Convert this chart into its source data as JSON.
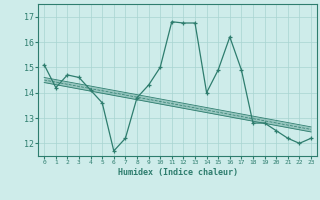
{
  "x": [
    0,
    1,
    2,
    3,
    4,
    5,
    6,
    7,
    8,
    9,
    10,
    11,
    12,
    13,
    14,
    15,
    16,
    17,
    18,
    19,
    20,
    21,
    22,
    23
  ],
  "y": [
    15.1,
    14.2,
    14.7,
    14.6,
    14.1,
    13.6,
    11.7,
    12.2,
    13.8,
    14.3,
    15.0,
    16.8,
    16.75,
    16.75,
    14.0,
    14.9,
    16.2,
    14.9,
    12.8,
    12.8,
    12.5,
    12.2,
    12.0,
    12.2
  ],
  "trend_x": [
    0,
    23
  ],
  "trend_y": [
    14.5,
    12.55
  ],
  "line_color": "#2e7d6e",
  "trend_color": "#2e7d6e",
  "bg_color": "#ceecea",
  "grid_color": "#a8d4d1",
  "xlabel": "Humidex (Indice chaleur)",
  "xlim": [
    -0.5,
    23.5
  ],
  "ylim": [
    11.5,
    17.5
  ],
  "yticks": [
    12,
    13,
    14,
    15,
    16,
    17
  ],
  "xticks": [
    0,
    1,
    2,
    3,
    4,
    5,
    6,
    7,
    8,
    9,
    10,
    11,
    12,
    13,
    14,
    15,
    16,
    17,
    18,
    19,
    20,
    21,
    22,
    23
  ]
}
